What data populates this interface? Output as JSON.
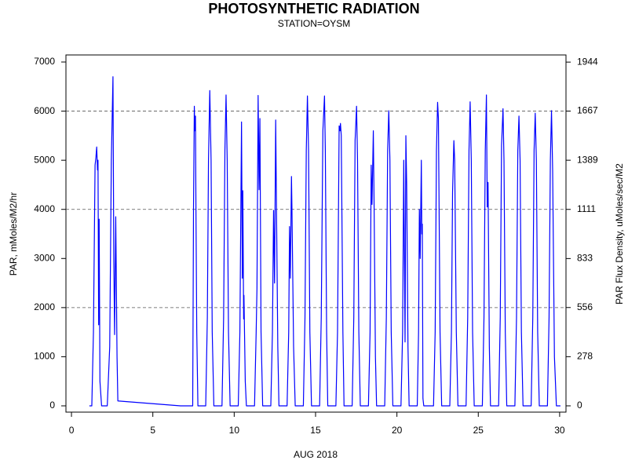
{
  "chart_data": {
    "type": "line",
    "title": "PHOTOSYNTHETIC RADIATION",
    "subtitle": "STATION=OYSM",
    "xlabel": "AUG 2018",
    "ylabel": "PAR, mMoles/M2/hr",
    "y2label": "PAR Flux Density, uMoles/sec/M2",
    "color": "#0000ff",
    "x": [
      1.1,
      1.25,
      1.35,
      1.45,
      1.5,
      1.55,
      1.6,
      1.63,
      1.67,
      1.7,
      1.75,
      1.85,
      2.2,
      2.35,
      2.45,
      2.55,
      2.6,
      2.65,
      2.72,
      2.8,
      2.85,
      6.7,
      7.45,
      7.5,
      7.55,
      7.58,
      7.62,
      7.65,
      7.7,
      7.77,
      8.25,
      8.35,
      8.42,
      8.5,
      8.58,
      8.65,
      8.75,
      9.25,
      9.35,
      9.43,
      9.5,
      9.57,
      9.65,
      9.75,
      10.25,
      10.35,
      10.45,
      10.5,
      10.53,
      10.58,
      10.6,
      10.68,
      10.75,
      11.25,
      11.35,
      11.4,
      11.47,
      11.53,
      11.58,
      11.65,
      11.75,
      12.25,
      12.35,
      12.42,
      12.48,
      12.55,
      12.6,
      12.68,
      12.75,
      13.25,
      13.35,
      13.4,
      13.45,
      13.52,
      13.55,
      13.65,
      13.75,
      14.25,
      14.35,
      14.43,
      14.5,
      14.57,
      14.65,
      14.75,
      15.25,
      15.35,
      15.45,
      15.55,
      15.6,
      15.68,
      15.75,
      16.25,
      16.35,
      16.45,
      16.5,
      16.53,
      16.58,
      16.68,
      16.75,
      17.25,
      17.35,
      17.43,
      17.52,
      17.58,
      17.66,
      17.75,
      18.25,
      18.35,
      18.42,
      18.47,
      18.55,
      18.6,
      18.68,
      18.75,
      19.25,
      19.35,
      19.43,
      19.5,
      19.57,
      19.65,
      19.75,
      20.25,
      20.35,
      20.42,
      20.5,
      20.55,
      20.6,
      20.68,
      20.75,
      21.25,
      21.33,
      21.38,
      21.43,
      21.5,
      21.53,
      21.56,
      21.6,
      21.65,
      22.25,
      22.35,
      22.43,
      22.5,
      22.55,
      22.65,
      22.75,
      23.25,
      23.35,
      23.42,
      23.5,
      23.55,
      23.65,
      23.75,
      24.25,
      24.35,
      24.43,
      24.5,
      24.57,
      24.65,
      24.75,
      25.25,
      25.35,
      25.43,
      25.5,
      25.55,
      25.6,
      25.68,
      25.75,
      26.25,
      26.35,
      26.43,
      26.52,
      26.58,
      26.66,
      26.75,
      27.25,
      27.35,
      27.43,
      27.5,
      27.57,
      27.65,
      27.75,
      28.25,
      28.35,
      28.43,
      28.5,
      28.57,
      28.65,
      28.75,
      29.25,
      29.35,
      29.43,
      29.5,
      29.57,
      29.68,
      29.8,
      30.05
    ],
    "values": [
      0,
      0,
      1500,
      4900,
      5050,
      5270,
      4800,
      5000,
      1650,
      3800,
      500,
      0,
      0,
      1200,
      5000,
      6700,
      3000,
      1450,
      3850,
      1000,
      100,
      0,
      0,
      4000,
      6100,
      5600,
      5900,
      4000,
      1500,
      0,
      0,
      1800,
      5000,
      6420,
      5000,
      1500,
      0,
      0,
      1800,
      5200,
      6330,
      5000,
      1500,
      0,
      0,
      1500,
      5780,
      2600,
      4380,
      1770,
      2250,
      500,
      0,
      0,
      1500,
      2400,
      6320,
      4400,
      5850,
      1500,
      0,
      0,
      1500,
      3980,
      2500,
      5820,
      4000,
      1200,
      0,
      0,
      1500,
      3650,
      2600,
      4670,
      4000,
      1200,
      0,
      0,
      1800,
      5200,
      6310,
      5200,
      1500,
      0,
      0,
      1800,
      5600,
      6310,
      5200,
      1500,
      0,
      0,
      1500,
      5700,
      5600,
      5750,
      5500,
      1500,
      0,
      0,
      1800,
      5400,
      6100,
      5000,
      1500,
      0,
      0,
      1500,
      4900,
      4100,
      5600,
      4000,
      1000,
      0,
      0,
      1800,
      5200,
      6010,
      5000,
      1500,
      0,
      0,
      1500,
      5000,
      1300,
      5500,
      4500,
      1200,
      0,
      0,
      1500,
      4000,
      3000,
      5000,
      3500,
      3700,
      150,
      0,
      0,
      1500,
      5200,
      6180,
      5850,
      1500,
      0,
      0,
      1500,
      4350,
      5400,
      5000,
      1500,
      0,
      0,
      1800,
      5200,
      6190,
      5000,
      1500,
      0,
      0,
      1800,
      5200,
      6330,
      4050,
      4550,
      1200,
      0,
      0,
      1800,
      5300,
      6050,
      5000,
      1500,
      0,
      0,
      1800,
      5200,
      5900,
      5000,
      1500,
      0,
      0,
      1800,
      5200,
      5960,
      5000,
      1500,
      0,
      0,
      1800,
      5000,
      6010,
      4800,
      1000,
      0,
      0
    ],
    "xlim": [
      -0.34,
      30.39
    ],
    "xticks": [
      0,
      5,
      10,
      15,
      20,
      25,
      30
    ],
    "ylim": [
      -128,
      7144
    ],
    "yticks": [
      0,
      1000,
      2000,
      3000,
      4000,
      5000,
      6000,
      7000
    ],
    "y2lim": [
      -35.6,
      1984.5
    ],
    "y2ticks": [
      0,
      278,
      556,
      833,
      1111,
      1389,
      1667,
      1944
    ],
    "reference_lines": [
      2000,
      4000,
      6000
    ]
  }
}
